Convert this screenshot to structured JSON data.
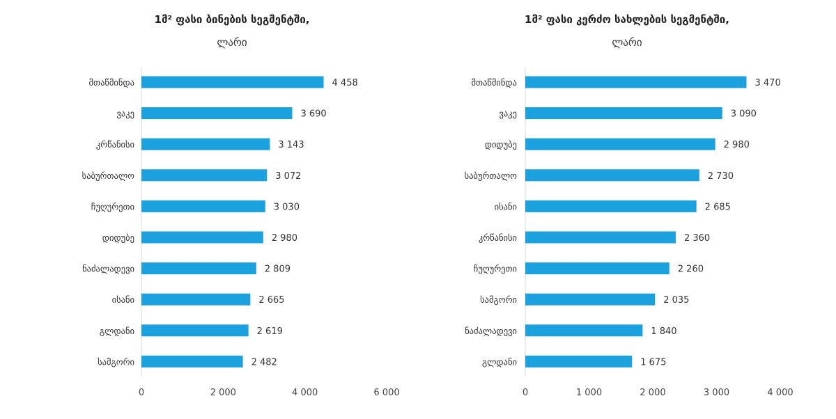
{
  "chart_data": [
    {
      "type": "bar",
      "orientation": "horizontal",
      "title": "1მ² ფასი ბინების სეგმენტში,",
      "subtitle": "ლარი",
      "categories": [
        "მთაწმინდა",
        "ვაკე",
        "კრწანისი",
        "საბურთალო",
        "ჩუღურეთი",
        "დიდუბე",
        "ნაძალადევი",
        "ისანი",
        "გლდანი",
        "სამგორი"
      ],
      "values": [
        4458,
        3690,
        3143,
        3072,
        3030,
        2980,
        2809,
        2665,
        2619,
        2482
      ],
      "value_labels": [
        "4 458",
        "3 690",
        "3 143",
        "3 072",
        "3 030",
        "2 980",
        "2 809",
        "2 665",
        "2 619",
        "2 482"
      ],
      "xlim": [
        0,
        6000
      ],
      "ticks": [
        0,
        2000,
        4000,
        6000
      ],
      "tick_labels": [
        "0",
        "2 000",
        "4 000",
        "6 000"
      ],
      "xlabel": "",
      "ylabel": "",
      "color": "#1ba1dd"
    },
    {
      "type": "bar",
      "orientation": "horizontal",
      "title": "1მ² ფასი კერძო სახლების სეგმენტში,",
      "subtitle": "ლარი",
      "categories": [
        "მთაწმინდა",
        "ვაკე",
        "დიდუბე",
        "საბურთალო",
        "ისანი",
        "კრწანისი",
        "ჩუღურეთი",
        "სამგორი",
        "ნაძალადევი",
        "გლდანი"
      ],
      "values": [
        3470,
        3090,
        2980,
        2730,
        2685,
        2360,
        2260,
        2035,
        1840,
        1675
      ],
      "value_labels": [
        "3 470",
        "3 090",
        "2 980",
        "2 730",
        "2 685",
        "2 360",
        "2 260",
        "2 035",
        "1 840",
        "1 675"
      ],
      "xlim": [
        0,
        4000
      ],
      "ticks": [
        0,
        1000,
        2000,
        3000,
        4000
      ],
      "tick_labels": [
        "0",
        "1 000",
        "2 000",
        "3 000",
        "4 000"
      ],
      "xlabel": "",
      "ylabel": "",
      "color": "#1ba1dd"
    }
  ]
}
